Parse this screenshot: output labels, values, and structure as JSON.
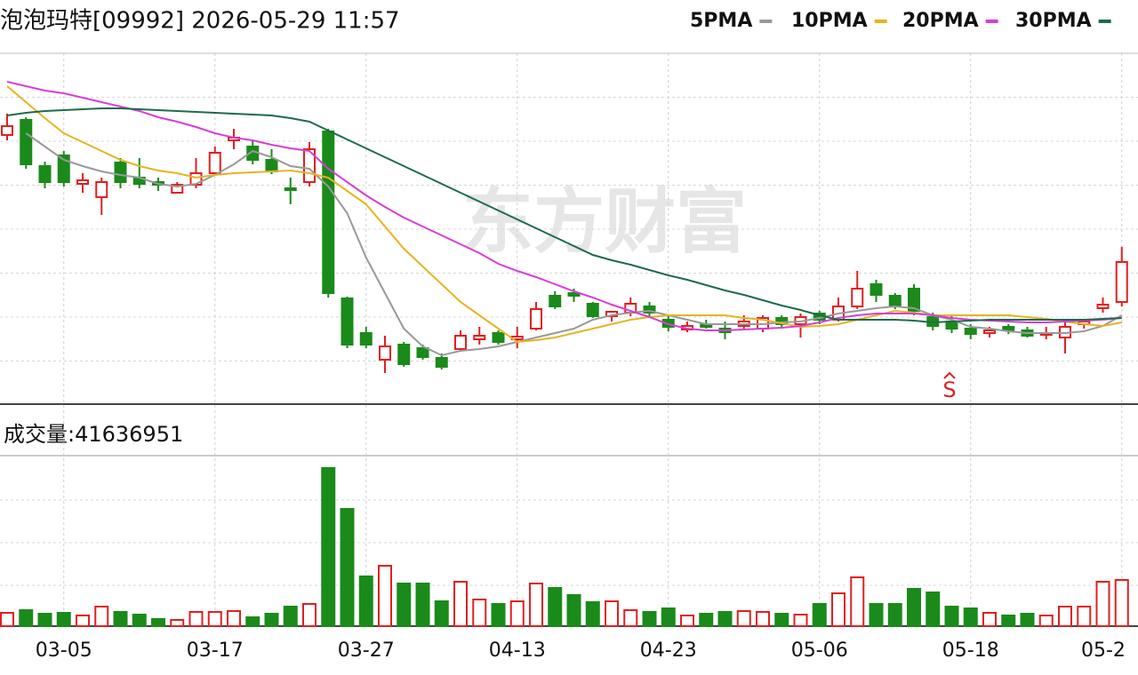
{
  "chart_data": {
    "type": "candlestick",
    "title": "泡泡玛特[09992] 2026-05-29 11:57",
    "watermark": "东方财富",
    "annotation": "S",
    "categories": [
      null,
      null,
      null,
      "03-05",
      null,
      null,
      null,
      null,
      null,
      null,
      null,
      "03-17",
      null,
      null,
      null,
      null,
      null,
      null,
      null,
      "03-27",
      null,
      null,
      null,
      null,
      null,
      null,
      null,
      "04-13",
      null,
      null,
      null,
      null,
      null,
      null,
      null,
      "04-23",
      null,
      null,
      null,
      null,
      null,
      null,
      null,
      "05-06",
      null,
      null,
      null,
      null,
      null,
      null,
      null,
      "05-18",
      null,
      null,
      null,
      null,
      null,
      null,
      null,
      "05-2"
    ],
    "open": [
      303,
      320,
      268,
      280,
      248,
      233,
      272,
      255,
      250,
      238,
      247,
      260,
      297,
      290,
      275,
      243,
      250,
      307,
      119,
      80,
      50,
      67,
      63,
      52,
      62,
      73,
      80,
      73,
      85,
      122,
      125,
      113,
      99,
      103,
      110,
      95,
      84,
      90,
      85,
      88,
      85,
      97,
      90,
      102,
      95,
      110,
      135,
      122,
      130,
      98,
      93,
      85,
      80,
      87,
      83,
      78,
      75,
      90,
      108,
      115
    ],
    "close": [
      313,
      270,
      250,
      250,
      252,
      250,
      250,
      248,
      247,
      247,
      260,
      283,
      300,
      275,
      262,
      241,
      287,
      125,
      67,
      67,
      65,
      45,
      53,
      42,
      77,
      77,
      70,
      76,
      107,
      110,
      122,
      99,
      104,
      113,
      103,
      87,
      88,
      87,
      81,
      93,
      97,
      90,
      98,
      95,
      110,
      130,
      123,
      110,
      105,
      88,
      85,
      79,
      83,
      83,
      77,
      80,
      87,
      93,
      112,
      160
    ],
    "high": [
      327,
      323,
      273,
      285,
      260,
      255,
      277,
      277,
      255,
      250,
      277,
      290,
      310,
      297,
      287,
      255,
      295,
      310,
      121,
      87,
      77,
      70,
      67,
      57,
      83,
      87,
      83,
      87,
      115,
      127,
      130,
      115,
      105,
      120,
      115,
      100,
      93,
      95,
      93,
      100,
      100,
      100,
      102,
      105,
      120,
      150,
      140,
      125,
      135,
      103,
      100,
      90,
      87,
      90,
      87,
      87,
      93,
      95,
      120,
      177
    ],
    "low": [
      297,
      265,
      243,
      245,
      238,
      213,
      243,
      243,
      240,
      237,
      243,
      258,
      287,
      270,
      259,
      225,
      245,
      120,
      63,
      63,
      35,
      42,
      50,
      39,
      60,
      67,
      67,
      63,
      83,
      107,
      115,
      97,
      93,
      99,
      97,
      82,
      81,
      85,
      73,
      83,
      81,
      87,
      75,
      90,
      93,
      107,
      115,
      107,
      100,
      83,
      80,
      73,
      75,
      79,
      75,
      73,
      57,
      85,
      103,
      110
    ],
    "up_color": "#e02020",
    "down_color": "#1a8a1a",
    "ylim": [
      0,
      395
    ],
    "ma": [
      {
        "name": "5PMA",
        "color": "#999999",
        "values": [
          null,
          305,
          290,
          275,
          268,
          262,
          258,
          255,
          248,
          245,
          248,
          258,
          270,
          285,
          278,
          268,
          265,
          245,
          215,
          165,
          125,
          85,
          65,
          55,
          60,
          62,
          65,
          70,
          75,
          80,
          85,
          95,
          100,
          103,
          105,
          100,
          95,
          90,
          90,
          90,
          90,
          92,
          93,
          97,
          102,
          105,
          108,
          110,
          108,
          100,
          95,
          87,
          85,
          82,
          80,
          80,
          80,
          82,
          88,
          100
        ]
      },
      {
        "name": "10PMA",
        "color": "#e6b422",
        "values": [
          358,
          340,
          322,
          305,
          295,
          285,
          275,
          268,
          263,
          260,
          255,
          258,
          260,
          261,
          262,
          263,
          260,
          255,
          240,
          225,
          200,
          175,
          155,
          135,
          115,
          100,
          85,
          70,
          72,
          75,
          80,
          85,
          90,
          95,
          98,
          100,
          100,
          100,
          100,
          97,
          95,
          91,
          87,
          88,
          90,
          95,
          100,
          105,
          103,
          100,
          100,
          100,
          100,
          100,
          98,
          96,
          93,
          90,
          88,
          92
        ]
      },
      {
        "name": "20PMA",
        "color": "#d63fd6",
        "values": [
          363,
          358,
          353,
          350,
          345,
          340,
          335,
          330,
          323,
          318,
          312,
          305,
          300,
          297,
          292,
          288,
          285,
          265,
          250,
          235,
          222,
          210,
          200,
          190,
          180,
          170,
          158,
          150,
          143,
          135,
          127,
          120,
          112,
          105,
          98,
          90,
          85,
          83,
          83,
          84,
          85,
          86,
          88,
          92,
          97,
          100,
          102,
          102,
          102,
          100,
          97,
          95,
          94,
          93,
          92,
          92,
          93,
          94,
          95,
          97
        ]
      },
      {
        "name": "30PMA",
        "color": "#1f6b4a",
        "values": [
          325,
          328,
          330,
          331,
          332,
          333,
          333,
          332,
          331,
          330,
          329,
          328,
          327,
          326,
          325,
          322,
          318,
          308,
          298,
          288,
          278,
          268,
          258,
          248,
          238,
          228,
          218,
          208,
          198,
          188,
          178,
          168,
          162,
          157,
          151,
          145,
          140,
          134,
          128,
          123,
          117,
          111,
          106,
          100,
          95,
          95,
          95,
          95,
          94,
          92,
          93,
          94,
          95,
          95,
          95,
          95,
          95,
          95,
          96,
          97
        ]
      }
    ],
    "volume": {
      "label": "成交量:41636951",
      "ylim": [
        0,
        190
      ],
      "values": [
        15,
        18,
        14,
        15,
        12,
        22,
        16,
        13,
        8,
        7,
        16,
        16,
        17,
        10,
        14,
        22,
        25,
        178,
        132,
        56,
        68,
        48,
        48,
        28,
        50,
        30,
        25,
        28,
        48,
        43,
        35,
        27,
        28,
        18,
        16,
        20,
        12,
        14,
        16,
        17,
        16,
        14,
        13,
        25,
        37,
        55,
        25,
        25,
        42,
        38,
        22,
        20,
        15,
        12,
        14,
        12,
        22,
        22,
        50,
        52
      ]
    }
  }
}
